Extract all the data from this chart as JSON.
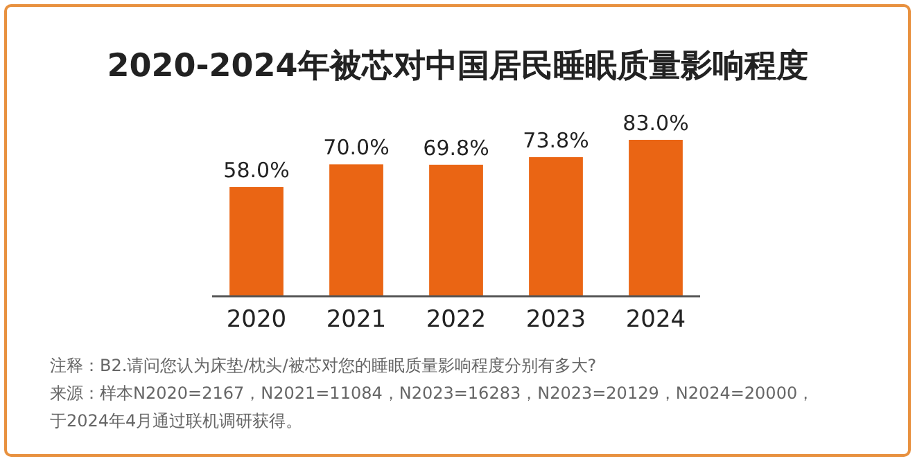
{
  "chart_data": {
    "type": "bar",
    "title": "2020-2024年被芯对中国居民睡眠质量影响程度",
    "categories": [
      "2020",
      "2021",
      "2022",
      "2023",
      "2024"
    ],
    "values": [
      58.0,
      70.0,
      69.8,
      73.8,
      83.0
    ],
    "value_labels": [
      "58.0%",
      "70.0%",
      "69.8%",
      "73.8%",
      "83.0%"
    ],
    "color": "#ea6514",
    "annotations": [
      "注释：B2.请问您认为床垫/枕头/被芯对您的睡眠质量影响程度分别有多大?",
      "来源：样本N2020=2167，N2021=11084，N2023=16283，N2023=20129，N2024=20000，于2024年4月通过联机调研获得。"
    ]
  }
}
